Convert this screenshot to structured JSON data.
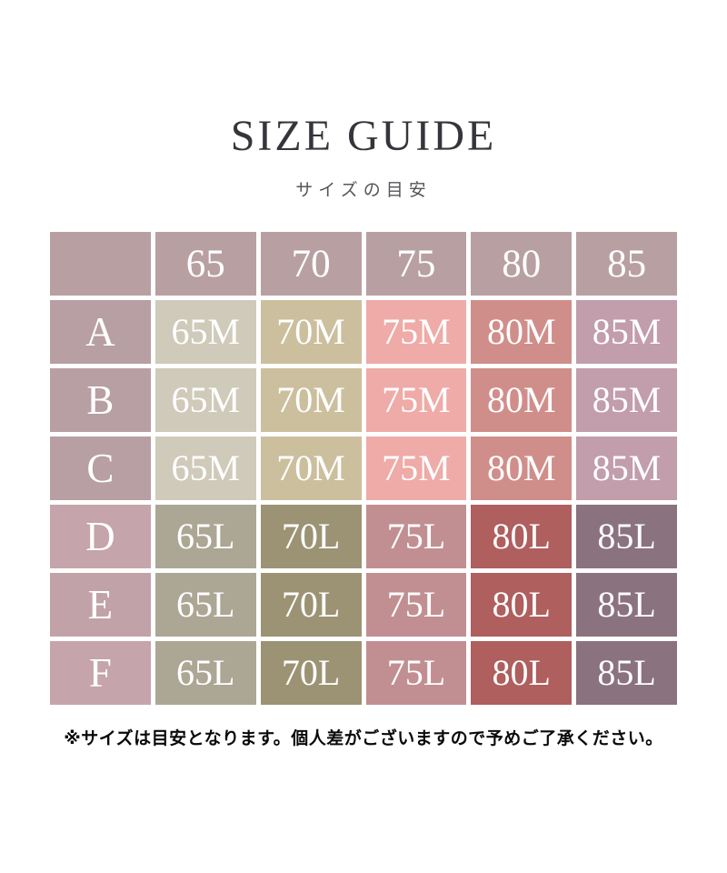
{
  "header": {
    "title": "SIZE GUIDE",
    "subtitle": "サイズの目安"
  },
  "table": {
    "columns": [
      "",
      "65",
      "70",
      "75",
      "80",
      "85"
    ],
    "header_bg": "#b8a0a2",
    "cell_text_color": "#ffffff",
    "rows": [
      {
        "label": "A",
        "label_bg": "#b79fa3",
        "cells": [
          {
            "text": "65M",
            "bg": "#cfcaba"
          },
          {
            "text": "70M",
            "bg": "#ccbf9e"
          },
          {
            "text": "75M",
            "bg": "#eeaba8"
          },
          {
            "text": "80M",
            "bg": "#d08e8b"
          },
          {
            "text": "85M",
            "bg": "#c29dac"
          }
        ]
      },
      {
        "label": "B",
        "label_bg": "#b79fa3",
        "cells": [
          {
            "text": "65M",
            "bg": "#cfcaba"
          },
          {
            "text": "70M",
            "bg": "#ccbf9e"
          },
          {
            "text": "75M",
            "bg": "#eeaba8"
          },
          {
            "text": "80M",
            "bg": "#d08e8b"
          },
          {
            "text": "85M",
            "bg": "#c29dac"
          }
        ]
      },
      {
        "label": "C",
        "label_bg": "#b79fa3",
        "cells": [
          {
            "text": "65M",
            "bg": "#cfcaba"
          },
          {
            "text": "70M",
            "bg": "#ccbf9e"
          },
          {
            "text": "75M",
            "bg": "#eeaba8"
          },
          {
            "text": "80M",
            "bg": "#d08e8b"
          },
          {
            "text": "85M",
            "bg": "#c29dac"
          }
        ]
      },
      {
        "label": "D",
        "label_bg": "#c5a4ab",
        "cells": [
          {
            "text": "65L",
            "bg": "#aca695"
          },
          {
            "text": "70L",
            "bg": "#9c9374"
          },
          {
            "text": "75L",
            "bg": "#c18f92"
          },
          {
            "text": "80L",
            "bg": "#ae5f5e"
          },
          {
            "text": "85L",
            "bg": "#8a727e"
          }
        ]
      },
      {
        "label": "E",
        "label_bg": "#c2a2a9",
        "cells": [
          {
            "text": "65L",
            "bg": "#aca695"
          },
          {
            "text": "70L",
            "bg": "#9c9374"
          },
          {
            "text": "75L",
            "bg": "#c18f92"
          },
          {
            "text": "80L",
            "bg": "#ae5f5e"
          },
          {
            "text": "85L",
            "bg": "#8a727e"
          }
        ]
      },
      {
        "label": "F",
        "label_bg": "#c5a4ab",
        "cells": [
          {
            "text": "65L",
            "bg": "#aca695"
          },
          {
            "text": "70L",
            "bg": "#9c9374"
          },
          {
            "text": "75L",
            "bg": "#c18f92"
          },
          {
            "text": "80L",
            "bg": "#ae5f5e"
          },
          {
            "text": "85L",
            "bg": "#8a727e"
          }
        ]
      }
    ]
  },
  "footer": {
    "note": "※サイズは目安となります。個人差がございますので予めご了承ください。"
  }
}
